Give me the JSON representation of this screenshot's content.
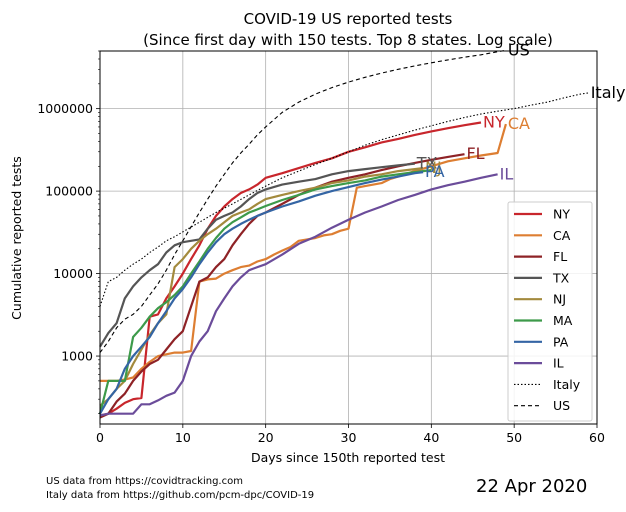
{
  "chart_data": {
    "type": "line",
    "title": "COVID-19 US reported tests",
    "subtitle": "(Since first day with 150 tests. Top 8 states. Log scale)",
    "xlabel": "Days since 150th reported test",
    "ylabel": "Cumulative reported tests",
    "xlim": [
      0,
      60
    ],
    "ylim": [
      150,
      5000000
    ],
    "y_scale": "log",
    "grid": true,
    "legend_position": "lower-right",
    "x_ticks": [
      0,
      10,
      20,
      30,
      40,
      50,
      60
    ],
    "y_ticks": [
      1000,
      10000,
      100000,
      1000000
    ],
    "x_tick_labels": [
      "0",
      "10",
      "20",
      "30",
      "40",
      "50",
      "60"
    ],
    "y_tick_labels": [
      "1000",
      "10000",
      "100000",
      "1000000"
    ],
    "series": [
      {
        "name": "NY",
        "color": "#c8262c",
        "width": 2.2,
        "dash": "",
        "end_label": "NY",
        "x": [
          0,
          1,
          2,
          3,
          4,
          5,
          6,
          7,
          8,
          9,
          10,
          11,
          12,
          13,
          14,
          15,
          16,
          17,
          18,
          19,
          20,
          22,
          24,
          26,
          28,
          30,
          32,
          34,
          36,
          38,
          40,
          42,
          44,
          46
        ],
        "y": [
          190,
          200,
          230,
          270,
          300,
          310,
          3000,
          3200,
          5000,
          7000,
          10000,
          15000,
          22000,
          35000,
          50000,
          65000,
          80000,
          95000,
          105000,
          120000,
          145000,
          165000,
          190000,
          220000,
          250000,
          300000,
          340000,
          390000,
          430000,
          480000,
          530000,
          580000,
          630000,
          680000
        ]
      },
      {
        "name": "CA",
        "color": "#dd7e32",
        "width": 2.2,
        "dash": "",
        "end_label": "CA",
        "x": [
          0,
          2,
          3,
          4,
          5,
          6,
          7,
          8,
          9,
          10,
          11,
          12,
          13,
          14,
          15,
          16,
          17,
          18,
          19,
          20,
          21,
          22,
          23,
          24,
          25,
          26,
          27,
          28,
          29,
          30,
          31,
          32,
          33,
          34,
          35,
          36,
          38,
          40,
          42,
          44,
          46,
          48,
          49
        ],
        "y": [
          500,
          500,
          520,
          550,
          700,
          850,
          1000,
          1050,
          1100,
          1100,
          1150,
          8000,
          8500,
          8700,
          10000,
          11000,
          12000,
          12500,
          14000,
          15000,
          17000,
          19000,
          21000,
          25000,
          26000,
          27000,
          29000,
          30000,
          33000,
          35000,
          110000,
          115000,
          120000,
          125000,
          140000,
          150000,
          175000,
          200000,
          230000,
          250000,
          270000,
          290000,
          650000
        ]
      },
      {
        "name": "FL",
        "color": "#8e2226",
        "width": 2.2,
        "dash": "",
        "end_label": "FL",
        "x": [
          0,
          1,
          2,
          3,
          4,
          5,
          6,
          7,
          8,
          9,
          10,
          11,
          12,
          13,
          14,
          15,
          16,
          17,
          18,
          19,
          20,
          22,
          24,
          26,
          28,
          30,
          32,
          34,
          36,
          38,
          40,
          42,
          44
        ],
        "y": [
          180,
          200,
          280,
          350,
          500,
          650,
          800,
          900,
          1200,
          1600,
          2000,
          4000,
          8000,
          9000,
          12000,
          15000,
          22000,
          30000,
          40000,
          50000,
          55000,
          70000,
          90000,
          110000,
          130000,
          145000,
          160000,
          180000,
          200000,
          220000,
          240000,
          260000,
          280000
        ]
      },
      {
        "name": "TX",
        "color": "#555555",
        "width": 2.2,
        "dash": "",
        "end_label": "TX",
        "x": [
          0,
          1,
          2,
          3,
          4,
          5,
          6,
          7,
          8,
          9,
          10,
          11,
          12,
          13,
          14,
          15,
          16,
          17,
          18,
          19,
          20,
          22,
          24,
          26,
          28,
          30,
          32,
          34,
          36,
          38
        ],
        "y": [
          1300,
          1900,
          2500,
          5000,
          7000,
          9000,
          11000,
          13000,
          18000,
          22000,
          24000,
          25000,
          26000,
          35000,
          45000,
          50000,
          55000,
          65000,
          80000,
          95000,
          105000,
          120000,
          130000,
          140000,
          160000,
          175000,
          185000,
          195000,
          205000,
          215000
        ]
      },
      {
        "name": "NJ",
        "color": "#a38a3d",
        "width": 2.2,
        "dash": "",
        "end_label": "NJ",
        "x": [
          0,
          1,
          2,
          3,
          4,
          5,
          6,
          7,
          8,
          9,
          10,
          11,
          12,
          13,
          14,
          15,
          16,
          17,
          18,
          19,
          20,
          22,
          24,
          26,
          28,
          30,
          32,
          34,
          36,
          38,
          39
        ],
        "y": [
          250,
          300,
          400,
          500,
          800,
          1200,
          1800,
          2500,
          3200,
          12000,
          15000,
          20000,
          25000,
          30000,
          35000,
          42000,
          50000,
          55000,
          60000,
          70000,
          80000,
          90000,
          100000,
          110000,
          125000,
          135000,
          150000,
          160000,
          175000,
          185000,
          190000
        ]
      },
      {
        "name": "MA",
        "color": "#3d9a4a",
        "width": 2.2,
        "dash": "",
        "end_label": "",
        "x": [
          0,
          1,
          2,
          3,
          4,
          5,
          6,
          7,
          8,
          9,
          10,
          11,
          12,
          13,
          14,
          15,
          16,
          17,
          18,
          19,
          20,
          22,
          24,
          26,
          28,
          30,
          32,
          34,
          36,
          38,
          40
        ],
        "y": [
          200,
          500,
          500,
          500,
          1700,
          2200,
          3000,
          3800,
          4500,
          5500,
          7000,
          10000,
          14000,
          20000,
          27000,
          35000,
          42000,
          48000,
          55000,
          60000,
          66000,
          78000,
          90000,
          105000,
          115000,
          125000,
          135000,
          150000,
          160000,
          170000,
          180000
        ]
      },
      {
        "name": "PA",
        "color": "#3465a4",
        "width": 2.2,
        "dash": "",
        "end_label": "PA",
        "x": [
          0,
          1,
          2,
          3,
          4,
          5,
          6,
          7,
          8,
          9,
          10,
          11,
          12,
          13,
          14,
          15,
          16,
          17,
          18,
          19,
          20,
          22,
          24,
          26,
          28,
          30,
          32,
          34,
          36,
          38,
          39
        ],
        "y": [
          200,
          300,
          400,
          700,
          1000,
          1300,
          1700,
          2500,
          3500,
          5000,
          6500,
          9000,
          13000,
          18000,
          24000,
          30000,
          35000,
          40000,
          45000,
          50000,
          55000,
          65000,
          75000,
          88000,
          100000,
          112000,
          125000,
          138000,
          150000,
          165000,
          170000
        ]
      },
      {
        "name": "IL",
        "color": "#6b4c9a",
        "width": 2.2,
        "dash": "",
        "end_label": "IL",
        "x": [
          0,
          1,
          2,
          3,
          4,
          5,
          6,
          7,
          8,
          9,
          10,
          11,
          12,
          13,
          14,
          15,
          16,
          17,
          18,
          19,
          20,
          22,
          24,
          26,
          28,
          30,
          32,
          34,
          36,
          38,
          40,
          42,
          44,
          46,
          48
        ],
        "y": [
          190,
          200,
          200,
          200,
          200,
          260,
          260,
          290,
          330,
          360,
          500,
          1000,
          1500,
          2000,
          3500,
          5000,
          7000,
          9000,
          11000,
          12000,
          13000,
          17000,
          23000,
          28000,
          36000,
          45000,
          55000,
          65000,
          78000,
          90000,
          105000,
          118000,
          130000,
          145000,
          160000
        ]
      },
      {
        "name": "Italy",
        "color": "#000000",
        "width": 1.1,
        "dash": "1.5,2",
        "end_label": "Italy",
        "x": [
          0,
          1,
          2,
          3,
          4,
          5,
          6,
          7,
          8,
          9,
          10,
          12,
          14,
          16,
          18,
          20,
          22,
          24,
          26,
          28,
          30,
          32,
          34,
          36,
          38,
          40,
          42,
          44,
          46,
          48,
          50,
          52,
          54,
          56,
          58,
          59
        ],
        "y": [
          4000,
          8000,
          9000,
          11000,
          13000,
          15000,
          18000,
          21000,
          25000,
          28000,
          32000,
          42000,
          55000,
          70000,
          90000,
          115000,
          145000,
          175000,
          210000,
          250000,
          300000,
          360000,
          420000,
          480000,
          550000,
          620000,
          700000,
          780000,
          860000,
          930000,
          1000000,
          1100000,
          1200000,
          1350000,
          1500000,
          1550000
        ]
      },
      {
        "name": "US",
        "color": "#000000",
        "width": 1.1,
        "dash": "4,3",
        "end_label": "US",
        "x": [
          0,
          1,
          2,
          3,
          4,
          5,
          6,
          7,
          8,
          9,
          10,
          11,
          12,
          13,
          14,
          15,
          16,
          17,
          18,
          19,
          20,
          22,
          24,
          26,
          28,
          30,
          32,
          34,
          36,
          38,
          40,
          42,
          44,
          46,
          48,
          49
        ],
        "y": [
          1100,
          1500,
          2200,
          2800,
          3200,
          4000,
          5500,
          7500,
          11000,
          17000,
          25000,
          37000,
          55000,
          80000,
          115000,
          160000,
          220000,
          290000,
          370000,
          480000,
          600000,
          900000,
          1200000,
          1500000,
          1800000,
          2100000,
          2400000,
          2700000,
          3000000,
          3300000,
          3600000,
          3900000,
          4200000,
          4500000,
          4900000,
          5100000
        ]
      }
    ]
  },
  "legend": [
    "NY",
    "CA",
    "FL",
    "TX",
    "NJ",
    "MA",
    "PA",
    "IL",
    "Italy",
    "US"
  ],
  "footer": {
    "source_us": "US data from https://covidtracking.com",
    "source_italy": "Italy data from https://github.com/pcm-dpc/COVID-19",
    "date": "22 Apr 2020"
  }
}
